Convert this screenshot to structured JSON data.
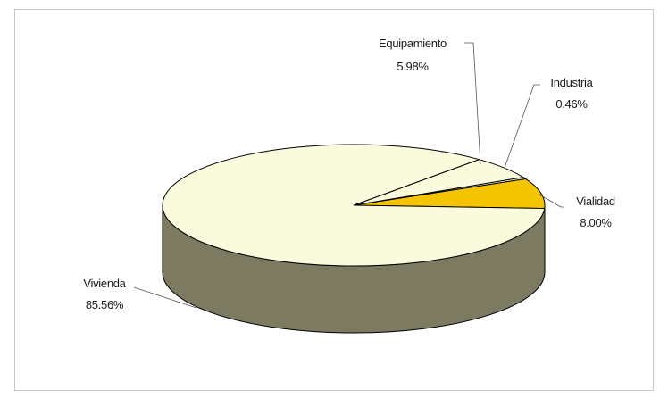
{
  "chart_data": {
    "type": "pie",
    "style": "3d",
    "title": "",
    "slices": [
      {
        "label": "Vivienda",
        "percent_label": "85.56%",
        "value": 85.56,
        "color": "#fafadc"
      },
      {
        "label": "Equipamiento",
        "percent_label": "5.98%",
        "value": 5.98,
        "color": "#fafadc"
      },
      {
        "label": "Industria",
        "percent_label": "0.46%",
        "value": 0.46,
        "color": "#fafadc"
      },
      {
        "label": "Vialidad",
        "percent_label": "8.00%",
        "value": 8.0,
        "color": "#f5c400"
      }
    ],
    "side_color": "#7d7a62",
    "legend": "none"
  }
}
